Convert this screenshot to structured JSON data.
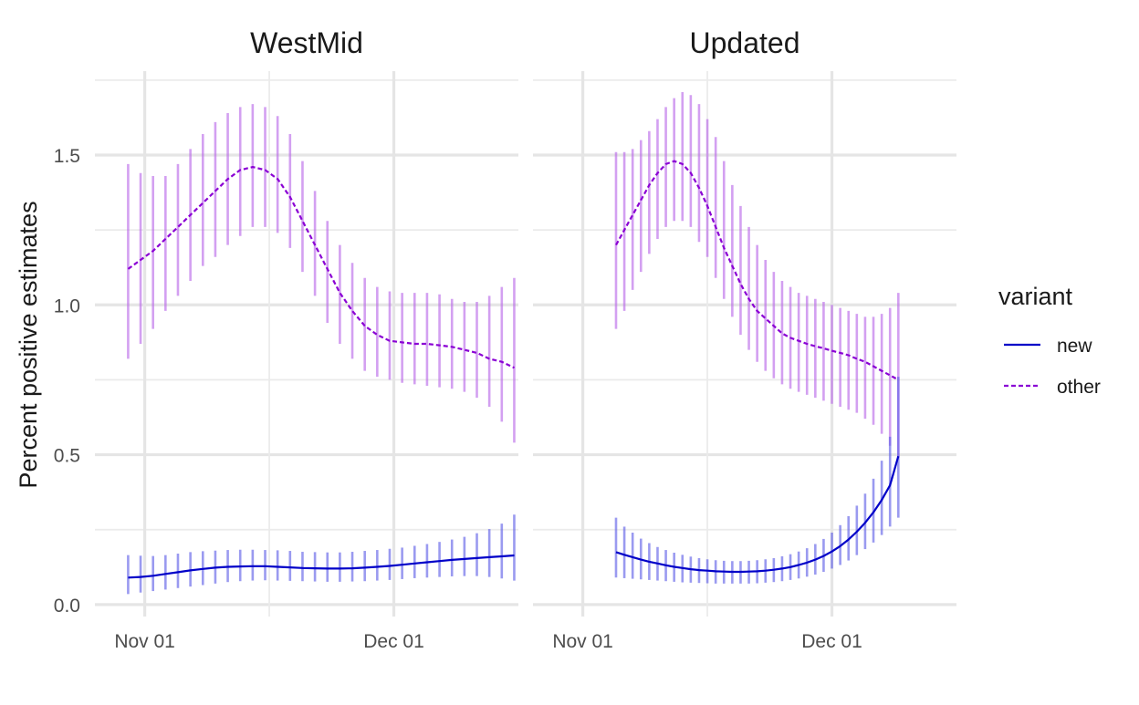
{
  "chart_data": {
    "type": "line",
    "ylabel": "Percent positive estimates",
    "xlabel": "",
    "ylim": [
      -0.04,
      1.78
    ],
    "yticks": [
      0.0,
      0.5,
      1.0,
      1.5
    ],
    "ytick_labels": [
      "0.0",
      "0.5",
      "1.0",
      "1.5"
    ],
    "grid": true,
    "legend": {
      "title": "variant",
      "placement": "right",
      "entries": [
        {
          "name": "new",
          "color": "#0000c8",
          "dash": "solid"
        },
        {
          "name": "other",
          "color": "#8a00d4",
          "dash": "dashed"
        }
      ]
    },
    "panels": [
      {
        "title": "WestMid",
        "x_range": [
          "2020-10-26",
          "2020-12-16"
        ],
        "x_ticks": [
          {
            "date": "2020-11-01",
            "label": "Nov 01"
          },
          {
            "date": "2020-12-01",
            "label": "Dec 01"
          }
        ],
        "series": [
          {
            "name": "other",
            "start": "2020-10-30",
            "step_days": 1.5,
            "mean": [
              1.12,
              1.15,
              1.18,
              1.22,
              1.26,
              1.3,
              1.34,
              1.38,
              1.42,
              1.45,
              1.46,
              1.45,
              1.42,
              1.36,
              1.28,
              1.2,
              1.12,
              1.04,
              0.98,
              0.93,
              0.9,
              0.88,
              0.875,
              0.87,
              0.87,
              0.865,
              0.86,
              0.85,
              0.84,
              0.82,
              0.81,
              0.79
            ],
            "lower": [
              0.82,
              0.87,
              0.92,
              0.98,
              1.03,
              1.08,
              1.13,
              1.16,
              1.2,
              1.23,
              1.26,
              1.26,
              1.24,
              1.19,
              1.11,
              1.03,
              0.94,
              0.87,
              0.82,
              0.78,
              0.76,
              0.75,
              0.74,
              0.735,
              0.73,
              0.725,
              0.72,
              0.71,
              0.69,
              0.66,
              0.61,
              0.54
            ],
            "upper": [
              1.47,
              1.44,
              1.43,
              1.43,
              1.47,
              1.52,
              1.57,
              1.61,
              1.64,
              1.66,
              1.67,
              1.66,
              1.63,
              1.57,
              1.48,
              1.38,
              1.28,
              1.2,
              1.14,
              1.09,
              1.06,
              1.045,
              1.04,
              1.04,
              1.04,
              1.035,
              1.02,
              1.01,
              1.01,
              1.03,
              1.06,
              1.09
            ]
          },
          {
            "name": "new",
            "start": "2020-10-30",
            "step_days": 1.5,
            "mean": [
              0.09,
              0.092,
              0.096,
              0.102,
              0.108,
              0.114,
              0.119,
              0.123,
              0.126,
              0.127,
              0.128,
              0.128,
              0.126,
              0.124,
              0.122,
              0.121,
              0.12,
              0.12,
              0.121,
              0.123,
              0.126,
              0.129,
              0.133,
              0.137,
              0.141,
              0.145,
              0.149,
              0.152,
              0.155,
              0.158,
              0.161,
              0.164
            ],
            "lower": [
              0.035,
              0.04,
              0.045,
              0.05,
              0.055,
              0.06,
              0.065,
              0.07,
              0.075,
              0.078,
              0.08,
              0.081,
              0.08,
              0.079,
              0.078,
              0.077,
              0.076,
              0.076,
              0.077,
              0.078,
              0.08,
              0.082,
              0.085,
              0.088,
              0.09,
              0.092,
              0.094,
              0.095,
              0.095,
              0.092,
              0.087,
              0.08
            ],
            "upper": [
              0.165,
              0.163,
              0.162,
              0.165,
              0.17,
              0.175,
              0.178,
              0.18,
              0.182,
              0.183,
              0.183,
              0.182,
              0.181,
              0.179,
              0.176,
              0.175,
              0.174,
              0.174,
              0.176,
              0.179,
              0.182,
              0.186,
              0.19,
              0.196,
              0.202,
              0.209,
              0.217,
              0.226,
              0.238,
              0.252,
              0.27,
              0.3
            ]
          }
        ]
      },
      {
        "title": "Updated",
        "x_range": [
          "2020-10-26",
          "2020-12-16"
        ],
        "x_ticks": [
          {
            "date": "2020-11-01",
            "label": "Nov 01"
          },
          {
            "date": "2020-12-01",
            "label": "Dec 01"
          }
        ],
        "series": [
          {
            "name": "other",
            "start": "2020-11-05",
            "step_days": 1.0,
            "mean": [
              1.2,
              1.25,
              1.3,
              1.35,
              1.4,
              1.44,
              1.47,
              1.48,
              1.47,
              1.44,
              1.39,
              1.33,
              1.26,
              1.19,
              1.13,
              1.07,
              1.02,
              0.98,
              0.955,
              0.93,
              0.905,
              0.89,
              0.88,
              0.87,
              0.862,
              0.855,
              0.847,
              0.84,
              0.832,
              0.82,
              0.81,
              0.795,
              0.78,
              0.765,
              0.75
            ],
            "lower": [
              0.92,
              0.98,
              1.05,
              1.11,
              1.17,
              1.22,
              1.26,
              1.28,
              1.28,
              1.26,
              1.21,
              1.16,
              1.09,
              1.02,
              0.96,
              0.9,
              0.85,
              0.81,
              0.78,
              0.755,
              0.735,
              0.72,
              0.71,
              0.7,
              0.69,
              0.68,
              0.67,
              0.66,
              0.65,
              0.64,
              0.62,
              0.6,
              0.57,
              0.53,
              0.49
            ],
            "upper": [
              1.51,
              1.51,
              1.52,
              1.55,
              1.58,
              1.62,
              1.66,
              1.69,
              1.71,
              1.7,
              1.67,
              1.62,
              1.56,
              1.48,
              1.4,
              1.33,
              1.26,
              1.2,
              1.15,
              1.11,
              1.08,
              1.06,
              1.04,
              1.03,
              1.02,
              1.01,
              1.0,
              0.99,
              0.98,
              0.97,
              0.96,
              0.96,
              0.97,
              0.99,
              1.04
            ]
          },
          {
            "name": "new",
            "start": "2020-11-05",
            "step_days": 1.0,
            "mean": [
              0.175,
              0.166,
              0.158,
              0.15,
              0.143,
              0.137,
              0.131,
              0.126,
              0.122,
              0.118,
              0.115,
              0.113,
              0.111,
              0.11,
              0.109,
              0.109,
              0.11,
              0.111,
              0.113,
              0.116,
              0.12,
              0.125,
              0.132,
              0.14,
              0.15,
              0.162,
              0.177,
              0.195,
              0.217,
              0.243,
              0.273,
              0.308,
              0.349,
              0.398,
              0.495
            ],
            "lower": [
              0.09,
              0.088,
              0.086,
              0.084,
              0.082,
              0.08,
              0.078,
              0.076,
              0.074,
              0.073,
              0.072,
              0.071,
              0.07,
              0.07,
              0.07,
              0.07,
              0.07,
              0.071,
              0.073,
              0.075,
              0.078,
              0.082,
              0.087,
              0.093,
              0.1,
              0.109,
              0.12,
              0.132,
              0.147,
              0.165,
              0.185,
              0.207,
              0.232,
              0.26,
              0.29
            ],
            "upper": [
              0.29,
              0.26,
              0.24,
              0.22,
              0.205,
              0.192,
              0.182,
              0.173,
              0.166,
              0.16,
              0.155,
              0.151,
              0.148,
              0.146,
              0.145,
              0.145,
              0.146,
              0.148,
              0.151,
              0.155,
              0.161,
              0.168,
              0.177,
              0.188,
              0.202,
              0.219,
              0.24,
              0.265,
              0.295,
              0.33,
              0.37,
              0.42,
              0.48,
              0.56,
              0.76
            ]
          }
        ]
      }
    ]
  }
}
